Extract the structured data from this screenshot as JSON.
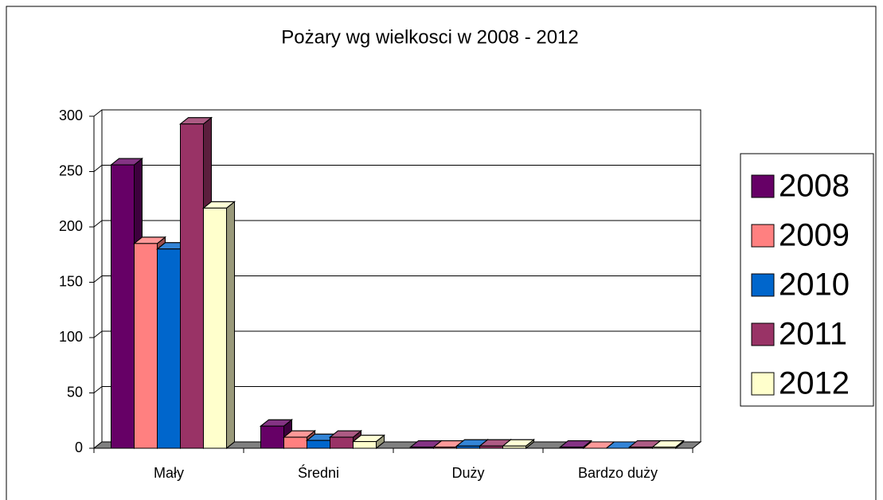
{
  "chart_data": {
    "type": "bar3d",
    "title": "Pożary wg wielkosci w 2008 - 2012",
    "categories": [
      "Mały",
      "Średni",
      "Duży",
      "Bardzo duży"
    ],
    "series": [
      {
        "name": "2008",
        "color": "#660066",
        "values": [
          256,
          20,
          1,
          1
        ]
      },
      {
        "name": "2009",
        "color": "#ff8080",
        "values": [
          185,
          10,
          1,
          0
        ]
      },
      {
        "name": "2010",
        "color": "#0066cc",
        "values": [
          180,
          7,
          2,
          0
        ]
      },
      {
        "name": "2011",
        "color": "#993366",
        "values": [
          293,
          10,
          2,
          1
        ]
      },
      {
        "name": "2012",
        "color": "#ffffcc",
        "values": [
          217,
          6,
          2,
          1
        ]
      }
    ],
    "ylim": [
      0,
      300
    ],
    "yticks": [
      0,
      50,
      100,
      150,
      200,
      250,
      300
    ],
    "grid": true,
    "legend": "right"
  }
}
